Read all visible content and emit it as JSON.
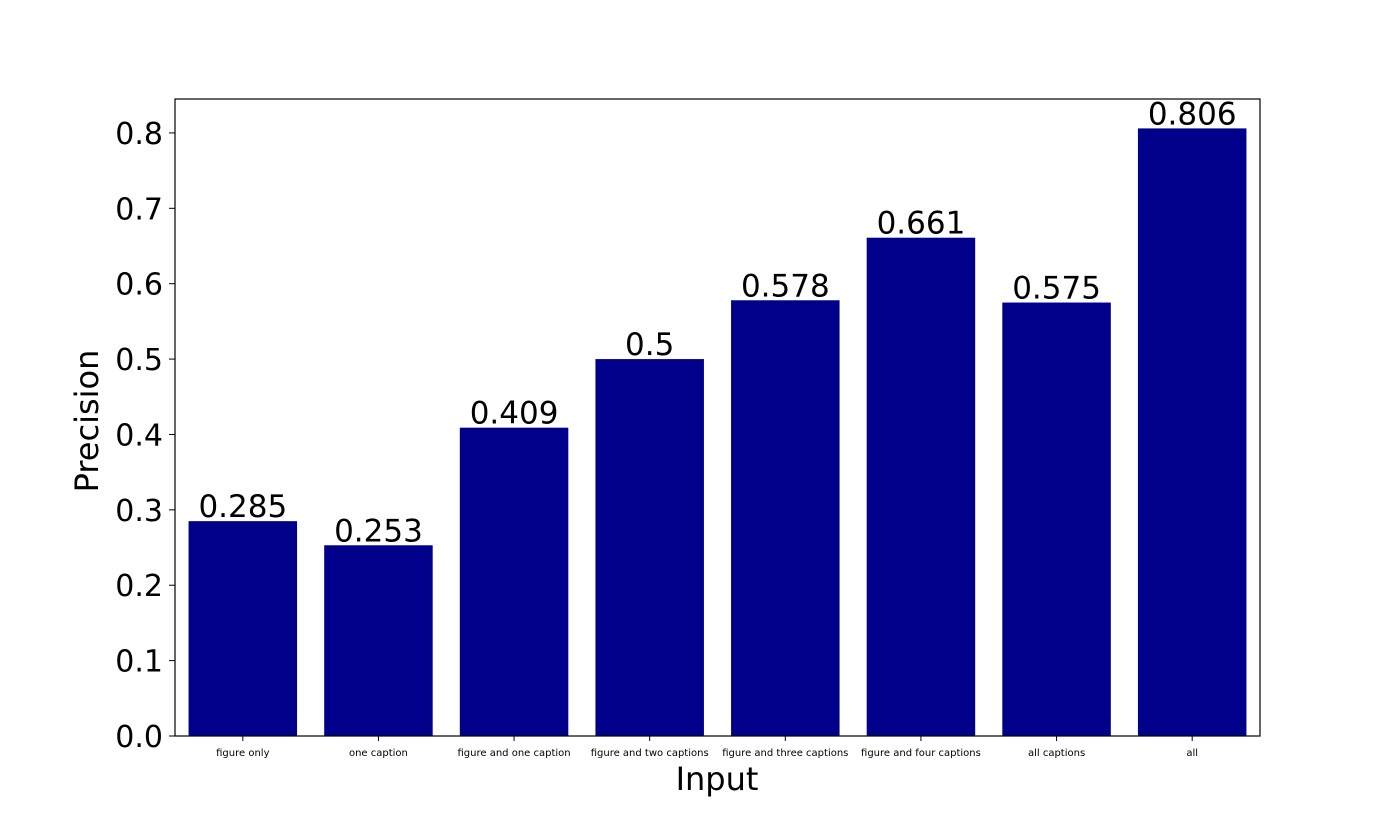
{
  "chart_data": {
    "type": "bar",
    "categories": [
      "figure only",
      "one caption",
      "figure and one caption",
      "figure and two captions",
      "figure and three captions",
      "figure and four captions",
      "all captions",
      "all"
    ],
    "values": [
      0.285,
      0.253,
      0.409,
      0.5,
      0.578,
      0.661,
      0.575,
      0.806
    ],
    "value_labels": [
      "0.285",
      "0.253",
      "0.409",
      "0.5",
      "0.578",
      "0.661",
      "0.575",
      "0.806"
    ],
    "xlabel": "Input",
    "ylabel": "Precision",
    "ylim": [
      0,
      0.845
    ],
    "yticks": [
      0.0,
      0.1,
      0.2,
      0.3,
      0.4,
      0.5,
      0.6,
      0.7,
      0.8
    ],
    "ytick_labels": [
      "0.0",
      "0.1",
      "0.2",
      "0.3",
      "0.4",
      "0.5",
      "0.6",
      "0.7",
      "0.8"
    ],
    "grid": false,
    "bar_color": "#00008b"
  }
}
